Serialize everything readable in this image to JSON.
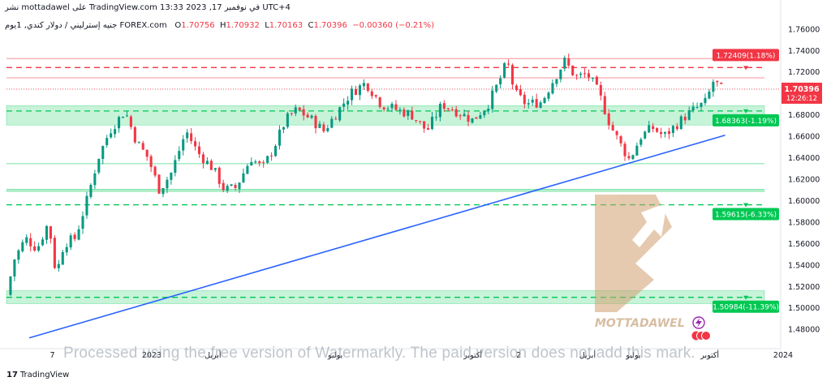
{
  "header": {
    "publisher_line": "نشر mottadawel على TradingView.com في نوفمبر 17, 2023 13:33 UTC+4",
    "symbol": "جنيه إسترليني / دولار كندي, 1يوم FOREX.com",
    "ohlc": {
      "open_label": "O",
      "open": "1.70756",
      "high_label": "H",
      "high": "1.70932",
      "low_label": "L",
      "low": "1.70163",
      "close_label": "C",
      "close": "1.70396",
      "change": "−0.00360 (−0.21%)"
    }
  },
  "chart_data": {
    "type": "candlestick",
    "timeframe": "1D",
    "ylim": [
      1.465,
      1.775
    ],
    "y_ticks": [
      "1.76000",
      "1.74000",
      "1.72000",
      "1.70000",
      "1.68000",
      "1.66000",
      "1.64000",
      "1.62000",
      "1.60000",
      "1.58000",
      "1.56000",
      "1.54000",
      "1.52000",
      "1.50000",
      "1.48000"
    ],
    "x_tick_labels": [
      {
        "label": "7",
        "at": 0.06
      },
      {
        "label": "2023",
        "at": 0.19
      },
      {
        "label": "أبريل",
        "at": 0.27
      },
      {
        "label": "يوليو",
        "at": 0.43
      },
      {
        "label": "أكتوبر",
        "at": 0.61
      },
      {
        "label": "2",
        "at": 0.67
      },
      {
        "label": "أبريل",
        "at": 0.76
      },
      {
        "label": "يوليو",
        "at": 0.82
      },
      {
        "label": "أكتوبر",
        "at": 0.92
      },
      {
        "label": "2024",
        "at": 1.04
      }
    ],
    "price_levels": [
      {
        "label": "1.72409(1.18%)",
        "value": 1.72409,
        "color": "#f23645",
        "kind": "resistance"
      },
      {
        "label": "1.68363(-1.19%)",
        "value": 1.68363,
        "color": "#00c853",
        "kind": "support"
      },
      {
        "label": "1.59615(-6.33%)",
        "value": 1.59615,
        "color": "#00c853",
        "kind": "support"
      },
      {
        "label": "1.50984(-11.39%)",
        "value": 1.50984,
        "color": "#00c853",
        "kind": "support"
      }
    ],
    "zones": [
      {
        "from": 1.6705,
        "to": 1.6885,
        "color": "#00c853"
      },
      {
        "from": 1.504,
        "to": 1.516,
        "color": "#00c853"
      },
      {
        "from": 1.6085,
        "to": 1.6095,
        "color": "#00c853"
      }
    ],
    "thin_lines": [
      {
        "value": 1.7325,
        "color": "#f23645"
      },
      {
        "value": 1.7145,
        "color": "#f23645"
      },
      {
        "value": 1.6345,
        "color": "#00c853"
      },
      {
        "value": 1.6105,
        "color": "#00c853"
      }
    ],
    "trendline": {
      "from": [
        0.0,
        1.472
      ],
      "to": [
        0.94,
        1.661
      ],
      "color": "#2962ff"
    },
    "current_price": {
      "value": "1.70396",
      "countdown": "12:26:12",
      "level": 1.70396,
      "color": "#f23645"
    },
    "path_anchors": [
      [
        0.0,
        1.512
      ],
      [
        0.01,
        1.545
      ],
      [
        0.025,
        1.565
      ],
      [
        0.04,
        1.555
      ],
      [
        0.055,
        1.58
      ],
      [
        0.065,
        1.53
      ],
      [
        0.075,
        1.56
      ],
      [
        0.09,
        1.565
      ],
      [
        0.105,
        1.6
      ],
      [
        0.12,
        1.64
      ],
      [
        0.135,
        1.665
      ],
      [
        0.155,
        1.684
      ],
      [
        0.17,
        1.655
      ],
      [
        0.185,
        1.64
      ],
      [
        0.2,
        1.61
      ],
      [
        0.215,
        1.625
      ],
      [
        0.235,
        1.665
      ],
      [
        0.25,
        1.645
      ],
      [
        0.27,
        1.63
      ],
      [
        0.285,
        1.61
      ],
      [
        0.3,
        1.612
      ],
      [
        0.32,
        1.64
      ],
      [
        0.335,
        1.63
      ],
      [
        0.35,
        1.65
      ],
      [
        0.365,
        1.675
      ],
      [
        0.38,
        1.685
      ],
      [
        0.4,
        1.675
      ],
      [
        0.415,
        1.665
      ],
      [
        0.43,
        1.68
      ],
      [
        0.45,
        1.7
      ],
      [
        0.47,
        1.71
      ],
      [
        0.49,
        1.69
      ],
      [
        0.51,
        1.685
      ],
      [
        0.53,
        1.68
      ],
      [
        0.55,
        1.665
      ],
      [
        0.57,
        1.69
      ],
      [
        0.59,
        1.683
      ],
      [
        0.61,
        1.675
      ],
      [
        0.63,
        1.69
      ],
      [
        0.645,
        1.712
      ],
      [
        0.655,
        1.73
      ],
      [
        0.665,
        1.7
      ],
      [
        0.68,
        1.69
      ],
      [
        0.7,
        1.692
      ],
      [
        0.715,
        1.712
      ],
      [
        0.73,
        1.73
      ],
      [
        0.745,
        1.715
      ],
      [
        0.76,
        1.718
      ],
      [
        0.775,
        1.7
      ],
      [
        0.79,
        1.67
      ],
      [
        0.805,
        1.65
      ],
      [
        0.815,
        1.638
      ],
      [
        0.83,
        1.66
      ],
      [
        0.845,
        1.668
      ],
      [
        0.86,
        1.66
      ],
      [
        0.875,
        1.67
      ],
      [
        0.89,
        1.68
      ],
      [
        0.9,
        1.685
      ],
      [
        0.915,
        1.692
      ],
      [
        0.925,
        1.712
      ],
      [
        0.935,
        1.704
      ]
    ],
    "brand_mark_text": "MOTTADAWEL"
  },
  "footer": {
    "watermark_text": "Processed using the free version of Watermarkly. The paid version does not add this mark.",
    "logo_text": "TradingView",
    "logo_glyph": "17"
  }
}
